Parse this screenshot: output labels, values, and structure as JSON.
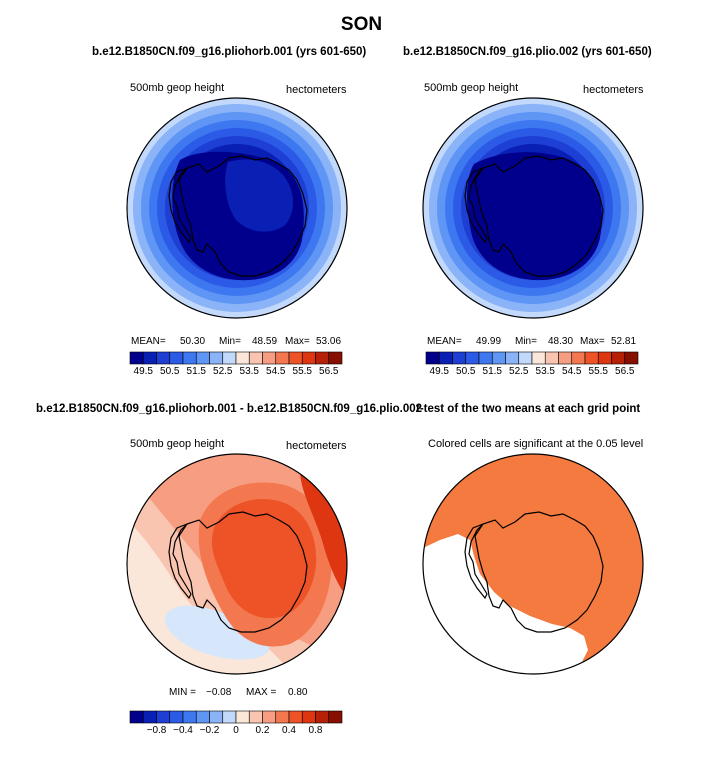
{
  "title": "SON",
  "panels": [
    {
      "id": "p1",
      "title": "b.e12.B1850CN.f09_g16.pliohorb.001 (yrs 601-650)",
      "left_label": "500mb geop height",
      "right_label": "hectometers",
      "stats": {
        "mean_label": "MEAN=",
        "mean": "50.30",
        "min_label": "Min=",
        "min": "48.59",
        "max_label": "Max=",
        "max": "53.06"
      }
    },
    {
      "id": "p2",
      "title": "b.e12.B1850CN.f09_g16.plio.002 (yrs 601-650)",
      "left_label": "500mb geop height",
      "right_label": "hectometers",
      "stats": {
        "mean_label": "MEAN=",
        "mean": "49.99",
        "min_label": "Min=",
        "min": "48.30",
        "max_label": "Max=",
        "max": "52.81"
      }
    },
    {
      "id": "p3",
      "title": "b.e12.B1850CN.f09_g16.pliohorb.001 - b.e12.B1850CN.f09_g16.plio.002",
      "left_label": "500mb geop height",
      "right_label": "hectometers",
      "stats": {
        "min_label": "MIN =",
        "min": "−0.08",
        "max_label": "MAX =",
        "max": "0.80"
      }
    },
    {
      "id": "p4",
      "title": "t-test of the two means at each grid point",
      "left_label": "Colored cells are significant at the 0.05 level"
    }
  ],
  "colorbars": {
    "top": {
      "colors": [
        "#00008c",
        "#0a1fb4",
        "#1e3fd4",
        "#2b5ae6",
        "#3e78f0",
        "#5f95f5",
        "#8bb3f8",
        "#c2d9fb",
        "#fbe6da",
        "#f9c5b0",
        "#f79e82",
        "#f3784f",
        "#ee5328",
        "#dd3610",
        "#b62006",
        "#870f00"
      ],
      "tick_labels": [
        "49.5",
        "50.5",
        "51.5",
        "52.5",
        "53.5",
        "54.5",
        "55.5",
        "56.5"
      ]
    },
    "bottom": {
      "colors": [
        "#00008c",
        "#0a1fb4",
        "#1e3fd4",
        "#2b5ae6",
        "#3e78f0",
        "#5f95f5",
        "#8bb3f8",
        "#c2d9fb",
        "#fbe6da",
        "#f9c5b0",
        "#f79e82",
        "#f3784f",
        "#ee5328",
        "#dd3610",
        "#b62006",
        "#870f00"
      ],
      "tick_labels": [
        "−0.8",
        "−0.4",
        "−0.2",
        "0",
        "0.2",
        "0.4",
        "0.8"
      ]
    }
  },
  "chart_data": [
    {
      "type": "heatmap",
      "title": "b.e12.B1850CN.f09_g16.pliohorb.001 (yrs 601-650)",
      "units": "hectometers",
      "variable": "500mb geop height",
      "mean": 50.3,
      "min": 48.59,
      "max": 53.06,
      "levels": [
        49.5,
        50,
        50.5,
        51,
        51.5,
        52,
        52.5,
        53,
        53.5,
        54,
        54.5,
        55,
        55.5,
        56,
        56.5
      ]
    },
    {
      "type": "heatmap",
      "title": "b.e12.B1850CN.f09_g16.plio.002 (yrs 601-650)",
      "units": "hectometers",
      "variable": "500mb geop height",
      "mean": 49.99,
      "min": 48.3,
      "max": 52.81,
      "levels": [
        49.5,
        50,
        50.5,
        51,
        51.5,
        52,
        52.5,
        53,
        53.5,
        54,
        54.5,
        55,
        55.5,
        56,
        56.5
      ]
    },
    {
      "type": "heatmap",
      "title": "b.e12.B1850CN.f09_g16.pliohorb.001 - b.e12.B1850CN.f09_g16.plio.002",
      "units": "hectometers",
      "variable": "500mb geop height",
      "min": -0.08,
      "max": 0.8,
      "levels": [
        -0.8,
        -0.6,
        -0.4,
        -0.3,
        -0.2,
        -0.1,
        0,
        0.1,
        0.2,
        0.3,
        0.4,
        0.6,
        0.8
      ]
    },
    {
      "type": "heatmap",
      "title": "t-test of the two means at each grid point",
      "note": "Colored cells are significant at the 0.05 level",
      "significance_level": 0.05
    }
  ]
}
